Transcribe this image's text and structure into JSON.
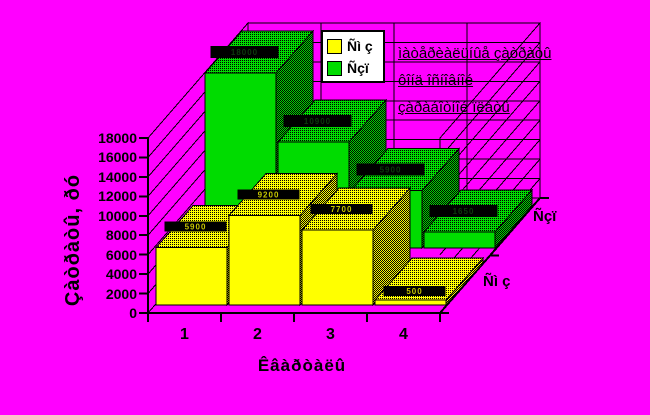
{
  "canvas": {
    "background": "#FF00FF"
  },
  "chart_data": {
    "type": "bar",
    "style": "3d-column",
    "title": "",
    "categories": [
      "1",
      "2",
      "3",
      "4"
    ],
    "series": [
      {
        "name": "Ñì ç",
        "color": "#FFFF00",
        "values": [
          5900,
          9200,
          7700,
          500
        ]
      },
      {
        "name": "Ñçï",
        "color": "#00DC00",
        "values": [
          18000,
          10900,
          5900,
          1650
        ]
      }
    ],
    "value_axis": {
      "title": "Çàòðàòû, ðó",
      "min": 0,
      "max": 18000,
      "step": 2000,
      "tick_labels": [
        "18000",
        "16000",
        "14000",
        "12000",
        "10000",
        "8000",
        "6000",
        "4000",
        "2000",
        "0"
      ]
    },
    "category_axis": {
      "title": "Êâàðòàëû",
      "labels": [
        "1",
        "2",
        "3",
        "4"
      ]
    },
    "series_axis": {
      "labels": [
        "Ñì ç",
        "Ñçï"
      ]
    },
    "legend": {
      "position": "top",
      "items": [
        {
          "label": "Ñì ç",
          "color": "#FFFF00"
        },
        {
          "label": "Ñçï",
          "color": "#00DC00"
        }
      ]
    },
    "annotation": {
      "lines": [
        "ìàòåðèàëüíûå çàòðàòû",
        "ôîíä îñíîâíîé",
        "çàðàáîòíîé ïëàòû"
      ]
    },
    "grid": "on",
    "wall_color": "#FF00FF",
    "line_color": "#000000"
  }
}
